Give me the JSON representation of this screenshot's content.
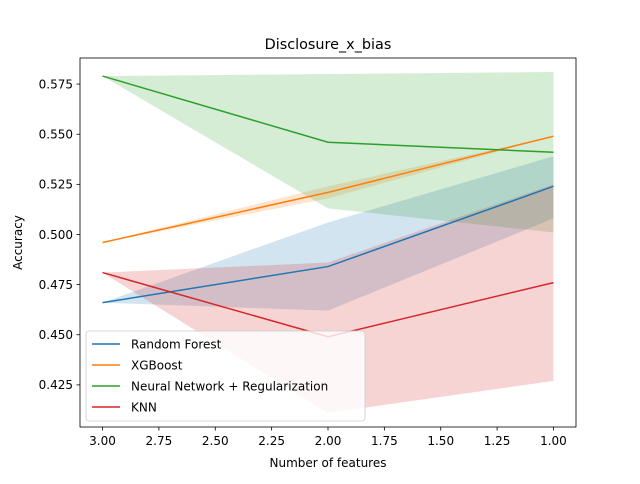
{
  "chart_data": {
    "type": "line",
    "title": "Disclosure_x_bias",
    "xlabel": "Number of features",
    "ylabel": "Accuracy",
    "x": [
      3.0,
      2.0,
      1.0
    ],
    "xlim": [
      3.1,
      0.9
    ],
    "ylim": [
      0.404,
      0.588
    ],
    "x_inverted": true,
    "xticks": [
      3.0,
      2.75,
      2.5,
      2.25,
      2.0,
      1.75,
      1.5,
      1.25,
      1.0
    ],
    "xtick_labels": [
      "3.00",
      "2.75",
      "2.50",
      "2.25",
      "2.00",
      "1.75",
      "1.50",
      "1.25",
      "1.00"
    ],
    "yticks": [
      0.425,
      0.45,
      0.475,
      0.5,
      0.525,
      0.55,
      0.575
    ],
    "ytick_labels": [
      "0.425",
      "0.450",
      "0.475",
      "0.500",
      "0.525",
      "0.550",
      "0.575"
    ],
    "grid": false,
    "legend_position": "bottom-left",
    "series": [
      {
        "name": "Random Forest",
        "color": "#1f77b4",
        "values": [
          0.466,
          0.484,
          0.524
        ],
        "lower": [
          0.466,
          0.462,
          0.508
        ],
        "upper": [
          0.466,
          0.506,
          0.539
        ]
      },
      {
        "name": "XGBoost",
        "color": "#ff7f0e",
        "values": [
          0.496,
          0.521,
          0.549
        ],
        "lower": [
          0.496,
          0.518,
          0.549
        ],
        "upper": [
          0.496,
          0.524,
          0.549
        ]
      },
      {
        "name": "Neural Network + Regularization",
        "color": "#2ca02c",
        "values": [
          0.579,
          0.546,
          0.541
        ],
        "lower": [
          0.579,
          0.513,
          0.501
        ],
        "upper": [
          0.579,
          0.58,
          0.581
        ]
      },
      {
        "name": "KNN",
        "color": "#d62728",
        "values": [
          0.481,
          0.449,
          0.476
        ],
        "lower": [
          0.481,
          0.411,
          0.427
        ],
        "upper": [
          0.481,
          0.486,
          0.525
        ]
      }
    ]
  }
}
